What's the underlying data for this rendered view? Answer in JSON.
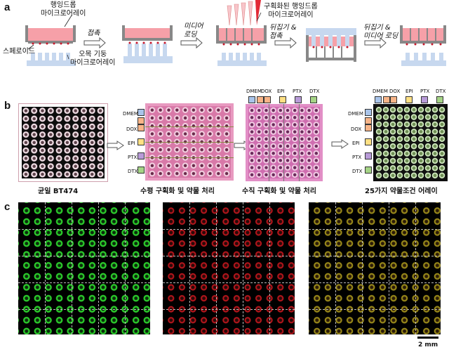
{
  "panels": {
    "a": "a",
    "b": "b",
    "c": "c"
  },
  "panel_a": {
    "hanging_array": "행잉드롭\n마이크로어레이",
    "spheroid": "스페로이드",
    "pillar_array": "오목 기둥\n마이크로어레이",
    "step1": "접촉",
    "step2": "미디어\n로딩",
    "compartment_array": "구획화된 행잉드롭\n마이크로어레이",
    "step3": "뒤집기 &\n접촉",
    "step4": "뒤집기 &\n미디어 로딩"
  },
  "panel_b": {
    "drugs": [
      "DMEM",
      "DOX",
      "EPI",
      "PTX",
      "DTX"
    ],
    "drug_colors": [
      "#a9c4ea",
      "#f7b488",
      "#ffe083",
      "#b89bd8",
      "#a5d486"
    ],
    "captions": [
      "균일 BT474",
      "수평 구획화 및 약물 처리",
      "수직 구획화 및 약물 처리",
      "25가지 약물조건 어레이"
    ]
  },
  "panel_c": {
    "scale_bar": "2 mm"
  }
}
